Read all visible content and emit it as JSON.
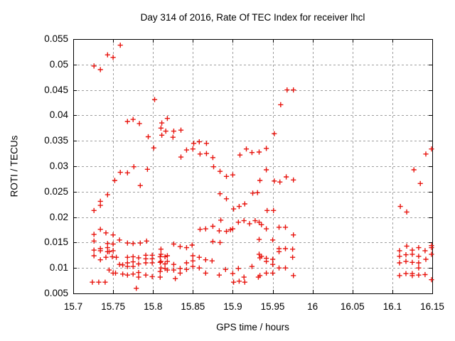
{
  "chart": {
    "title": "Day 314 of 2016, Rate Of TEC Index for receiver lhcl",
    "xlabel": "GPS time / hours",
    "ylabel": "ROTI / TECUs"
  },
  "chart_data": {
    "type": "scatter",
    "title": "Day 314 of 2016, Rate Of TEC Index for receiver lhcl",
    "xlabel": "GPS time / hours",
    "ylabel": "ROTI / TECUs",
    "xlim": [
      15.7,
      16.15
    ],
    "ylim": [
      0.005,
      0.055
    ],
    "xticks": [
      15.7,
      15.75,
      15.8,
      15.85,
      15.9,
      15.95,
      16,
      16.05,
      16.1,
      16.15
    ],
    "yticks": [
      0.005,
      0.01,
      0.015,
      0.02,
      0.025,
      0.03,
      0.035,
      0.04,
      0.045,
      0.05,
      0.055
    ],
    "grid": true,
    "legend_position": "none",
    "marker": "plus",
    "marker_color": "#e8140e",
    "grid_color": "#9e9e9e",
    "axis_color": "#000000",
    "series_name": "ROTI",
    "points": [
      [
        15.726,
        0.0497
      ],
      [
        15.734,
        0.049
      ],
      [
        15.743,
        0.0519
      ],
      [
        15.75,
        0.0514
      ],
      [
        15.759,
        0.0538
      ],
      [
        15.802,
        0.0431
      ],
      [
        15.768,
        0.0388
      ],
      [
        15.775,
        0.0392
      ],
      [
        15.783,
        0.0384
      ],
      [
        15.811,
        0.0385
      ],
      [
        15.818,
        0.0394
      ],
      [
        15.81,
        0.0375
      ],
      [
        15.816,
        0.0369
      ],
      [
        15.826,
        0.0369
      ],
      [
        15.835,
        0.0371
      ],
      [
        15.825,
        0.0357
      ],
      [
        15.811,
        0.0361
      ],
      [
        15.794,
        0.0358
      ],
      [
        15.851,
        0.0345
      ],
      [
        15.858,
        0.0348
      ],
      [
        15.867,
        0.0345
      ],
      [
        15.801,
        0.0336
      ],
      [
        15.842,
        0.0332
      ],
      [
        15.85,
        0.0334
      ],
      [
        15.835,
        0.0318
      ],
      [
        15.859,
        0.0324
      ],
      [
        15.867,
        0.0325
      ],
      [
        15.875,
        0.0317
      ],
      [
        15.876,
        0.0299
      ],
      [
        15.884,
        0.029
      ],
      [
        15.892,
        0.028
      ],
      [
        15.9,
        0.0283
      ],
      [
        15.909,
        0.0322
      ],
      [
        15.917,
        0.0334
      ],
      [
        15.924,
        0.0327
      ],
      [
        15.933,
        0.0328
      ],
      [
        15.942,
        0.0335
      ],
      [
        15.952,
        0.0364
      ],
      [
        15.934,
        0.0272
      ],
      [
        15.952,
        0.0271
      ],
      [
        15.959,
        0.0269
      ],
      [
        15.967,
        0.0279
      ],
      [
        15.976,
        0.0273
      ],
      [
        15.942,
        0.0293
      ],
      [
        15.968,
        0.045
      ],
      [
        15.976,
        0.045
      ],
      [
        15.96,
        0.0421
      ],
      [
        15.776,
        0.0299
      ],
      [
        15.793,
        0.0294
      ],
      [
        15.759,
        0.0288
      ],
      [
        15.768,
        0.0287
      ],
      [
        15.752,
        0.0272
      ],
      [
        15.784,
        0.0262
      ],
      [
        15.743,
        0.0244
      ],
      [
        15.734,
        0.0231
      ],
      [
        15.884,
        0.0246
      ],
      [
        15.892,
        0.0236
      ],
      [
        15.925,
        0.0247
      ],
      [
        15.931,
        0.0248
      ],
      [
        15.901,
        0.0216
      ],
      [
        15.908,
        0.0221
      ],
      [
        15.915,
        0.0226
      ],
      [
        15.726,
        0.0213
      ],
      [
        15.734,
        0.0223
      ],
      [
        16.11,
        0.0221
      ],
      [
        16.118,
        0.021
      ],
      [
        16.127,
        0.0293
      ],
      [
        16.135,
        0.0266
      ],
      [
        16.142,
        0.0324
      ],
      [
        16.149,
        0.0334
      ],
      [
        15.734,
        0.0176
      ],
      [
        15.726,
        0.0166
      ],
      [
        15.741,
        0.0169
      ],
      [
        15.75,
        0.0165
      ],
      [
        15.726,
        0.0153
      ],
      [
        15.758,
        0.0155
      ],
      [
        15.743,
        0.0148
      ],
      [
        15.75,
        0.0147
      ],
      [
        15.768,
        0.0149
      ],
      [
        15.775,
        0.0148
      ],
      [
        15.784,
        0.0149
      ],
      [
        15.792,
        0.0153
      ],
      [
        15.726,
        0.0135
      ],
      [
        15.734,
        0.0138
      ],
      [
        15.734,
        0.0134
      ],
      [
        15.743,
        0.014
      ],
      [
        15.743,
        0.0132
      ],
      [
        15.75,
        0.0134
      ],
      [
        15.726,
        0.0124
      ],
      [
        15.741,
        0.0121
      ],
      [
        15.749,
        0.0122
      ],
      [
        15.734,
        0.0116
      ],
      [
        15.75,
        0.009
      ],
      [
        15.724,
        0.0072
      ],
      [
        15.732,
        0.0072
      ],
      [
        15.74,
        0.0072
      ],
      [
        15.768,
        0.0086
      ],
      [
        15.779,
        0.006
      ],
      [
        15.828,
        0.0079
      ],
      [
        15.745,
        0.0132
      ],
      [
        15.754,
        0.0121
      ],
      [
        15.758,
        0.0107
      ],
      [
        15.762,
        0.0106
      ],
      [
        15.768,
        0.0121
      ],
      [
        15.768,
        0.011
      ],
      [
        15.768,
        0.0103
      ],
      [
        15.775,
        0.0122
      ],
      [
        15.775,
        0.0112
      ],
      [
        15.775,
        0.0103
      ],
      [
        15.782,
        0.012
      ],
      [
        15.782,
        0.0108
      ],
      [
        15.791,
        0.0125
      ],
      [
        15.791,
        0.0118
      ],
      [
        15.791,
        0.011
      ],
      [
        15.799,
        0.0125
      ],
      [
        15.799,
        0.0118
      ],
      [
        15.799,
        0.011
      ],
      [
        15.809,
        0.0122
      ],
      [
        15.815,
        0.0122
      ],
      [
        15.809,
        0.0111
      ],
      [
        15.815,
        0.0108
      ],
      [
        15.815,
        0.0099
      ],
      [
        15.809,
        0.0093
      ],
      [
        15.745,
        0.0096
      ],
      [
        15.753,
        0.009
      ],
      [
        15.762,
        0.0088
      ],
      [
        15.775,
        0.0088
      ],
      [
        15.782,
        0.0091
      ],
      [
        15.782,
        0.0082
      ],
      [
        15.791,
        0.0086
      ],
      [
        15.799,
        0.0083
      ],
      [
        15.809,
        0.0082
      ],
      [
        15.81,
        0.0137
      ],
      [
        15.818,
        0.0124
      ],
      [
        15.81,
        0.0127
      ],
      [
        15.81,
        0.0113
      ],
      [
        15.818,
        0.0113
      ],
      [
        15.81,
        0.01
      ],
      [
        15.818,
        0.0096
      ],
      [
        15.826,
        0.0147
      ],
      [
        15.834,
        0.0142
      ],
      [
        15.842,
        0.014
      ],
      [
        15.849,
        0.0145
      ],
      [
        15.826,
        0.0107
      ],
      [
        15.826,
        0.0096
      ],
      [
        15.834,
        0.0099
      ],
      [
        15.834,
        0.009
      ],
      [
        15.842,
        0.0097
      ],
      [
        15.842,
        0.011
      ],
      [
        15.85,
        0.0124
      ],
      [
        15.85,
        0.0114
      ],
      [
        15.85,
        0.0103
      ],
      [
        15.858,
        0.0121
      ],
      [
        15.858,
        0.01
      ],
      [
        15.866,
        0.0116
      ],
      [
        15.874,
        0.0114
      ],
      [
        15.866,
        0.009
      ],
      [
        15.875,
        0.0152
      ],
      [
        15.884,
        0.015
      ],
      [
        15.859,
        0.0176
      ],
      [
        15.866,
        0.0177
      ],
      [
        15.875,
        0.0182
      ],
      [
        15.883,
        0.0173
      ],
      [
        15.892,
        0.0172
      ],
      [
        15.897,
        0.0175
      ],
      [
        15.9,
        0.0177
      ],
      [
        15.885,
        0.0194
      ],
      [
        15.883,
        0.0086
      ],
      [
        15.891,
        0.0097
      ],
      [
        15.9,
        0.0089
      ],
      [
        15.901,
        0.0072
      ],
      [
        15.908,
        0.0074
      ],
      [
        15.915,
        0.0072
      ],
      [
        15.907,
        0.0099
      ],
      [
        15.914,
        0.0082
      ],
      [
        15.924,
        0.0103
      ],
      [
        15.932,
        0.0082
      ],
      [
        15.936,
        0.0123
      ],
      [
        15.907,
        0.019
      ],
      [
        15.914,
        0.0193
      ],
      [
        15.921,
        0.0187
      ],
      [
        15.928,
        0.0193
      ],
      [
        15.936,
        0.0185
      ],
      [
        15.943,
        0.0213
      ],
      [
        15.951,
        0.0213
      ],
      [
        15.933,
        0.019
      ],
      [
        15.942,
        0.0177
      ],
      [
        15.958,
        0.018
      ],
      [
        15.966,
        0.018
      ],
      [
        15.976,
        0.0165
      ],
      [
        15.933,
        0.0156
      ],
      [
        15.95,
        0.0155
      ],
      [
        15.958,
        0.0138
      ],
      [
        15.966,
        0.0138
      ],
      [
        15.975,
        0.0137
      ],
      [
        15.958,
        0.0132
      ],
      [
        15.975,
        0.0121
      ],
      [
        15.933,
        0.0127
      ],
      [
        15.934,
        0.012
      ],
      [
        15.942,
        0.0119
      ],
      [
        15.942,
        0.0113
      ],
      [
        15.95,
        0.0117
      ],
      [
        15.95,
        0.0107
      ],
      [
        15.958,
        0.01
      ],
      [
        15.966,
        0.01
      ],
      [
        15.942,
        0.009
      ],
      [
        15.95,
        0.009
      ],
      [
        15.934,
        0.0085
      ],
      [
        15.976,
        0.0085
      ],
      [
        16.118,
        0.0143
      ],
      [
        16.109,
        0.0134
      ],
      [
        16.125,
        0.0135
      ],
      [
        16.133,
        0.014
      ],
      [
        16.141,
        0.0134
      ],
      [
        16.149,
        0.014
      ],
      [
        16.149,
        0.0144
      ],
      [
        16.109,
        0.0123
      ],
      [
        16.117,
        0.0126
      ],
      [
        16.125,
        0.0127
      ],
      [
        16.133,
        0.0123
      ],
      [
        16.142,
        0.0117
      ],
      [
        16.149,
        0.0127
      ],
      [
        16.109,
        0.011
      ],
      [
        16.117,
        0.0113
      ],
      [
        16.125,
        0.0111
      ],
      [
        16.133,
        0.011
      ],
      [
        16.133,
        0.01
      ],
      [
        16.109,
        0.0085
      ],
      [
        16.117,
        0.0089
      ],
      [
        16.125,
        0.0089
      ],
      [
        16.125,
        0.0085
      ],
      [
        16.133,
        0.0086
      ],
      [
        16.141,
        0.0087
      ],
      [
        16.149,
        0.0077
      ]
    ]
  }
}
